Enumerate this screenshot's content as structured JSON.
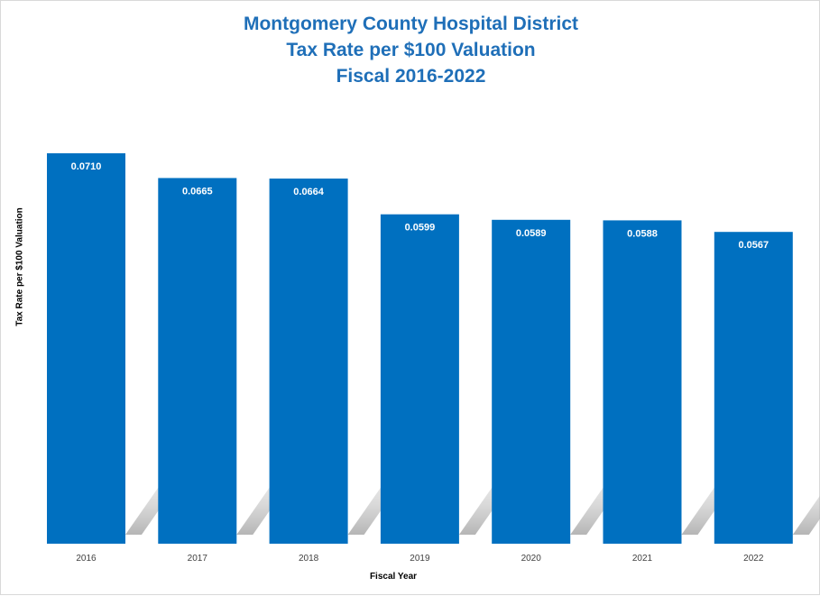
{
  "chart_data": {
    "type": "bar",
    "title_lines": [
      "Montgomery County Hospital District",
      "Tax Rate per $100 Valuation",
      "Fiscal 2016-2022"
    ],
    "xlabel": "Fiscal Year",
    "ylabel": "Tax Rate per $100 Valuation",
    "categories": [
      "2016",
      "2017",
      "2018",
      "2019",
      "2020",
      "2021",
      "2022"
    ],
    "values": [
      0.071,
      0.0665,
      0.0664,
      0.0599,
      0.0589,
      0.0588,
      0.0567
    ],
    "data_labels": [
      "0.0710",
      "0.0665",
      "0.0664",
      "0.0599",
      "0.0589",
      "0.0588",
      "0.0567"
    ],
    "ylim": [
      0,
      0.071
    ],
    "grid": false,
    "bar_color": "#0070c0",
    "title_color": "#1f6fb8"
  }
}
